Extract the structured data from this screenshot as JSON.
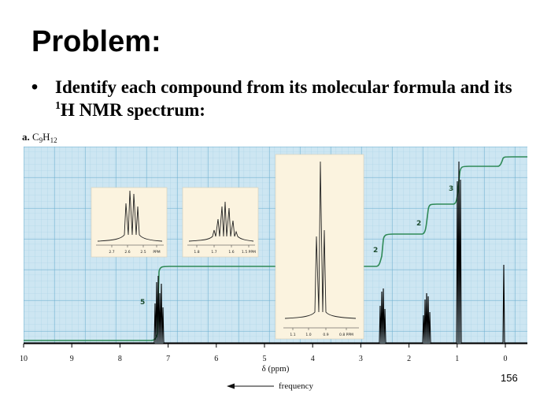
{
  "slide": {
    "title": "Problem:",
    "bullet_text_before": "Identify each compound from its molecular formula and its ",
    "bullet_sup": "1",
    "bullet_text_after": "H NMR spectrum:",
    "page_number": "156"
  },
  "spectrum": {
    "label_letter": "a.",
    "formula_c": "C",
    "formula_c_sub": "9",
    "formula_h": "H",
    "formula_h_sub": "12",
    "x_axis_ticks": [
      "10",
      "9",
      "8",
      "7",
      "6",
      "5",
      "4",
      "3",
      "2",
      "1",
      "0"
    ],
    "x_axis_label": "δ (ppm)",
    "direction_label": "frequency",
    "integration_labels": [
      "5",
      "2",
      "2",
      "3"
    ],
    "inset_1_ticks": [
      "2.7",
      "2.6",
      "2.5",
      "PPM"
    ],
    "inset_2_ticks": [
      "1.8",
      "1.7",
      "1.6",
      "1.5 PPM"
    ],
    "inset_3_ticks": [
      "1.1",
      "1.0",
      "0.9",
      "0.8 PPM"
    ],
    "colors": {
      "grid_background": "#cde6f2",
      "grid_line": "#7fbcd8",
      "integration_line": "#2f8a57",
      "inset_background": "#fbf3df"
    }
  }
}
